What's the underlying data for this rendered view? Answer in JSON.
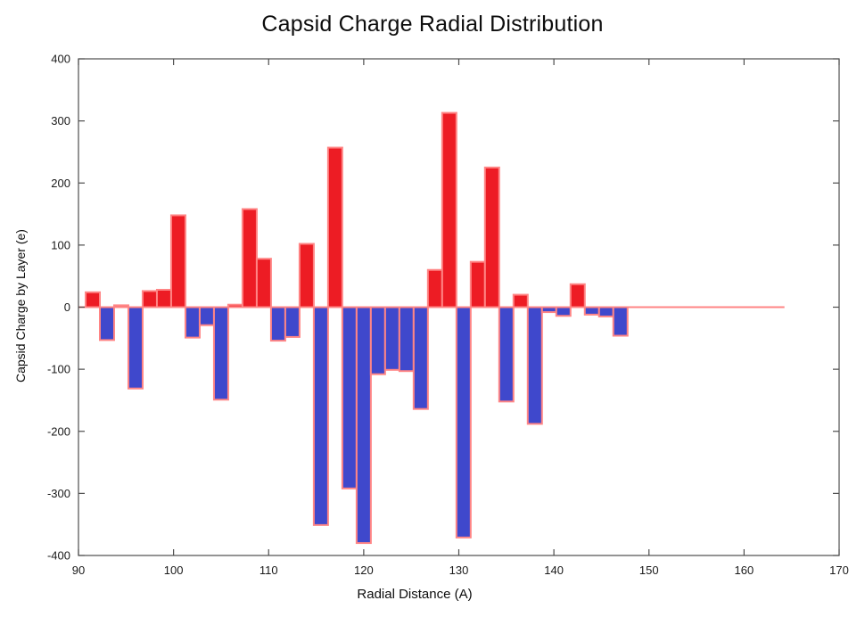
{
  "chart_data": {
    "type": "bar",
    "title": "Capsid Charge Radial Distribution",
    "xlabel": "Radial Distance (A)",
    "ylabel": "Capsid Charge by Layer (e)",
    "xlim": [
      90,
      170
    ],
    "ylim": [
      -400,
      400
    ],
    "x_ticks": [
      90,
      100,
      110,
      120,
      130,
      140,
      150,
      160,
      170
    ],
    "y_ticks": [
      -400,
      -300,
      -200,
      -100,
      0,
      100,
      200,
      300,
      400
    ],
    "grid": "off",
    "legend": "none",
    "bin_width": 1.5,
    "zero_line_end_x": 164.25,
    "points": [
      {
        "x": 91.5,
        "y": 24
      },
      {
        "x": 93.0,
        "y": -53
      },
      {
        "x": 94.5,
        "y": 3
      },
      {
        "x": 96.0,
        "y": -131
      },
      {
        "x": 97.5,
        "y": 26
      },
      {
        "x": 99.0,
        "y": 28
      },
      {
        "x": 100.5,
        "y": 148
      },
      {
        "x": 102.0,
        "y": -49
      },
      {
        "x": 103.5,
        "y": -29
      },
      {
        "x": 105.0,
        "y": -149
      },
      {
        "x": 106.5,
        "y": 4
      },
      {
        "x": 108.0,
        "y": 158
      },
      {
        "x": 109.5,
        "y": 78
      },
      {
        "x": 111.0,
        "y": -54
      },
      {
        "x": 112.5,
        "y": -48
      },
      {
        "x": 114.0,
        "y": 102
      },
      {
        "x": 115.5,
        "y": -351
      },
      {
        "x": 117.0,
        "y": 257
      },
      {
        "x": 118.5,
        "y": -292
      },
      {
        "x": 120.0,
        "y": -380
      },
      {
        "x": 121.5,
        "y": -108
      },
      {
        "x": 123.0,
        "y": -101
      },
      {
        "x": 124.5,
        "y": -103
      },
      {
        "x": 126.0,
        "y": -164
      },
      {
        "x": 127.5,
        "y": 60
      },
      {
        "x": 129.0,
        "y": 313
      },
      {
        "x": 130.5,
        "y": -371
      },
      {
        "x": 132.0,
        "y": 73
      },
      {
        "x": 133.5,
        "y": 225
      },
      {
        "x": 135.0,
        "y": -152
      },
      {
        "x": 136.5,
        "y": 20
      },
      {
        "x": 138.0,
        "y": -188
      },
      {
        "x": 139.5,
        "y": -8
      },
      {
        "x": 141.0,
        "y": -14
      },
      {
        "x": 142.5,
        "y": 37
      },
      {
        "x": 144.0,
        "y": -12
      },
      {
        "x": 145.5,
        "y": -15
      },
      {
        "x": 147.0,
        "y": -46
      },
      {
        "x": 148.5,
        "y": 0
      },
      {
        "x": 150.0,
        "y": 0
      },
      {
        "x": 151.5,
        "y": 0
      },
      {
        "x": 153.0,
        "y": 0
      },
      {
        "x": 154.5,
        "y": 0
      },
      {
        "x": 156.0,
        "y": 0
      },
      {
        "x": 157.5,
        "y": 0
      },
      {
        "x": 159.0,
        "y": 0
      },
      {
        "x": 160.5,
        "y": 0
      },
      {
        "x": 162.0,
        "y": 0
      },
      {
        "x": 163.5,
        "y": 0
      }
    ],
    "colors": {
      "positive_fill": "#ed1c24",
      "negative_fill": "#3f48cc",
      "bar_border": "#ff8585",
      "zero_line": "#ff8585",
      "axis": "#4d4d4d",
      "tick_text": "#1a1a1a"
    }
  }
}
